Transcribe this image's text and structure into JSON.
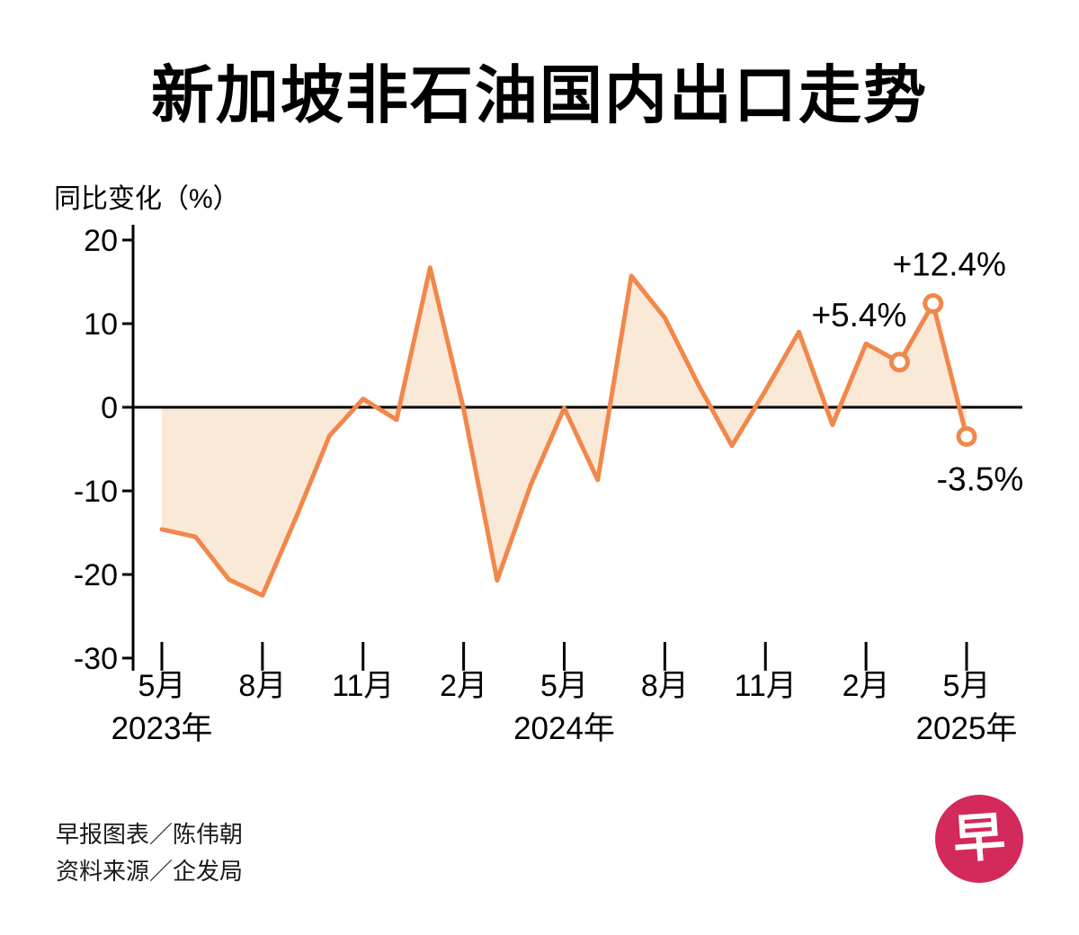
{
  "page": {
    "title": "新加坡非石油国内出口走势",
    "ylabel": "同比变化（%）",
    "credits": [
      "早报图表／陈伟朝",
      "资料来源／企发局"
    ],
    "logo_char": "早"
  },
  "chart_data": {
    "type": "line",
    "title": "新加坡非石油国内出口走势",
    "ylabel": "同比变化（%）",
    "grid": false,
    "ylim": [
      -30,
      22
    ],
    "y_ticks": [
      20,
      10,
      0,
      -10,
      -20,
      -30
    ],
    "x_months": [
      "2023-05",
      "2023-06",
      "2023-07",
      "2023-08",
      "2023-09",
      "2023-10",
      "2023-11",
      "2023-12",
      "2024-01",
      "2024-02",
      "2024-03",
      "2024-04",
      "2024-05",
      "2024-06",
      "2024-07",
      "2024-08",
      "2024-09",
      "2024-10",
      "2024-11",
      "2024-12",
      "2025-01",
      "2025-02",
      "2025-03",
      "2025-04",
      "2025-05"
    ],
    "values": [
      -14.6,
      -15.5,
      -20.6,
      -22.5,
      -13.2,
      -3.4,
      1.0,
      -1.5,
      16.7,
      -0.2,
      -20.7,
      -9.3,
      -0.1,
      -8.7,
      15.7,
      10.7,
      2.7,
      -4.6,
      2.0,
      9.0,
      -2.1,
      7.6,
      5.4,
      12.4,
      -3.5
    ],
    "x_tick_indices": [
      0,
      3,
      6,
      9,
      12,
      15,
      18,
      21,
      24
    ],
    "x_tick_labels": [
      "5月",
      "8月",
      "11月",
      "2月",
      "5月",
      "8月",
      "11月",
      "2月",
      "5月"
    ],
    "year_labels": [
      {
        "text": "2023年",
        "index": 0
      },
      {
        "text": "2024年",
        "index": 12
      },
      {
        "text": "2025年",
        "index": 24
      }
    ],
    "highlights": [
      {
        "index": 22,
        "month": "2025-03",
        "value": 5.4,
        "label": "+5.4%"
      },
      {
        "index": 23,
        "month": "2025-04",
        "value": 12.4,
        "label": "+12.4%"
      },
      {
        "index": 24,
        "month": "2025-05",
        "value": -3.5,
        "label": "-3.5%"
      }
    ],
    "colors": {
      "line": "#f1874b",
      "fill": "#fbe9d8",
      "axis": "#000000",
      "text": "#000000",
      "logo": "#d4295b"
    }
  }
}
